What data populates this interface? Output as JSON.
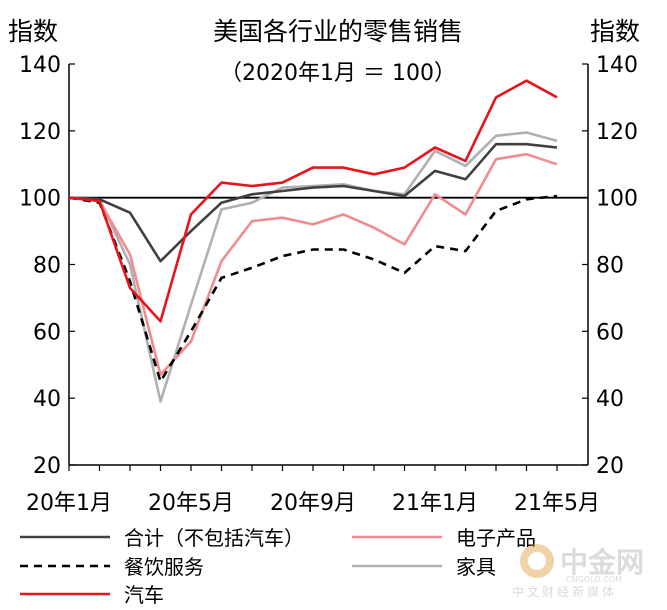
{
  "chart_data": {
    "type": "line",
    "title": "美国各行业的零售销售",
    "subtitle": "（2020年1月 ＝ 100）",
    "ylabel_left": "指数",
    "ylabel_right": "指数",
    "ylim": [
      20,
      140
    ],
    "yticks": [
      20,
      40,
      60,
      80,
      100,
      120,
      140
    ],
    "xlim": [
      0,
      16
    ],
    "xticks": [
      {
        "i": 0,
        "label": "20年1月"
      },
      {
        "i": 4,
        "label": "20年5月"
      },
      {
        "i": 8,
        "label": "20年9月"
      },
      {
        "i": 12,
        "label": "21年1月"
      },
      {
        "i": 16,
        "label": "21年5月"
      }
    ],
    "x": [
      "2020-01",
      "2020-02",
      "2020-03",
      "2020-04",
      "2020-05",
      "2020-06",
      "2020-07",
      "2020-08",
      "2020-09",
      "2020-10",
      "2020-11",
      "2020-12",
      "2021-01",
      "2021-02",
      "2021-03",
      "2021-04",
      "2021-05"
    ],
    "reference_line": 100,
    "grid": false,
    "series": [
      {
        "name": "合计（不包括汽车）",
        "color": "#404040",
        "dash": "solid",
        "values": [
          100,
          99.5,
          95.5,
          81,
          90,
          98.5,
          101,
          102,
          103,
          103.5,
          102,
          100.5,
          108,
          105.5,
          116,
          116,
          115
        ]
      },
      {
        "name": "电子产品",
        "color": "#f08c8c",
        "dash": "solid",
        "values": [
          100,
          99,
          83,
          47,
          57,
          81,
          93,
          94,
          92,
          95,
          91,
          86,
          101,
          95,
          111.5,
          113,
          110
        ]
      },
      {
        "name": "餐饮服务",
        "color": "#000000",
        "dash": "dashed",
        "values": [
          100,
          98.5,
          75,
          45,
          60,
          76,
          79,
          82.5,
          84.5,
          84.5,
          81.5,
          77.5,
          85.5,
          84,
          96,
          99.5,
          100.5
        ]
      },
      {
        "name": "家具",
        "color": "#b0b0b0",
        "dash": "solid",
        "values": [
          100,
          99.5,
          80,
          39,
          68,
          96.5,
          98.5,
          103,
          103.5,
          104,
          102,
          101,
          114,
          109.5,
          118.5,
          119.5,
          117
        ]
      },
      {
        "name": "汽车",
        "color": "#e8141c",
        "dash": "solid",
        "values": [
          100,
          99,
          73,
          63,
          95,
          104.5,
          103.5,
          104.5,
          109,
          109,
          107,
          109,
          115,
          111,
          130,
          135,
          130
        ]
      }
    ],
    "legend_position": "bottom",
    "legend_order": [
      0,
      1,
      2,
      3,
      4
    ]
  },
  "watermark": {
    "brand": "中金网",
    "site": "CNGOLD.COM",
    "tagline": "中文财经新媒体"
  }
}
